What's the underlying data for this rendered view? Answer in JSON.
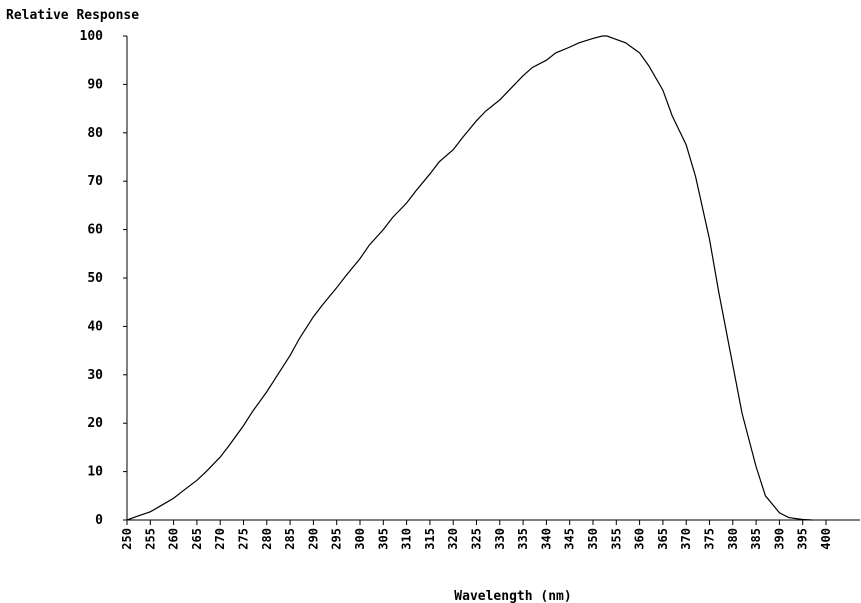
{
  "chart_data": {
    "type": "line",
    "title": "",
    "ylabel": "Relative Response",
    "xlabel": "Wavelength (nm)",
    "xlim": [
      250,
      405
    ],
    "ylim": [
      0,
      100
    ],
    "xticks": [
      "250",
      "255",
      "260",
      "265",
      "270",
      "275",
      "280",
      "285",
      "290",
      "295",
      "300",
      "305",
      "310",
      "315",
      "320",
      "325",
      "330",
      "335",
      "340",
      "345",
      "350",
      "355",
      "360",
      "365",
      "370",
      "375",
      "380",
      "385",
      "390",
      "395",
      "400"
    ],
    "yticks": [
      "0",
      "10",
      "20",
      "30",
      "40",
      "50",
      "60",
      "70",
      "80",
      "90",
      "100"
    ],
    "grid": false,
    "legend": "none",
    "line_color": "#000000",
    "series": [
      {
        "x": [
          250,
          252,
          255,
          257,
          260,
          262,
          265,
          267,
          270,
          272,
          275,
          277,
          280,
          282,
          285,
          287,
          290,
          292,
          295,
          297,
          300,
          302,
          305,
          307,
          310,
          312,
          315,
          317,
          320,
          322,
          325,
          327,
          330,
          332,
          335,
          337,
          340,
          342,
          345,
          347,
          350,
          352,
          353,
          355,
          357,
          360,
          362,
          365,
          367,
          370,
          372,
          375,
          377,
          380,
          382,
          385,
          387,
          390,
          392,
          395,
          397
        ],
        "values": [
          0,
          0.7,
          1.7,
          2.8,
          4.5,
          6,
          8.2,
          10,
          13,
          15.5,
          19.5,
          22.5,
          26.5,
          29.5,
          34,
          37.5,
          42,
          44.5,
          48,
          50.5,
          54,
          56.8,
          60,
          62.5,
          65.5,
          68,
          71.5,
          74,
          76.5,
          79,
          82.5,
          84.5,
          86.8,
          88.8,
          91.8,
          93.5,
          95,
          96.5,
          97.7,
          98.6,
          99.5,
          100,
          100,
          99.3,
          98.6,
          96.5,
          93.8,
          88.8,
          83.5,
          77.5,
          71,
          58,
          47,
          32,
          22,
          11,
          5,
          1.5,
          0.5,
          0.1,
          0
        ]
      }
    ]
  }
}
